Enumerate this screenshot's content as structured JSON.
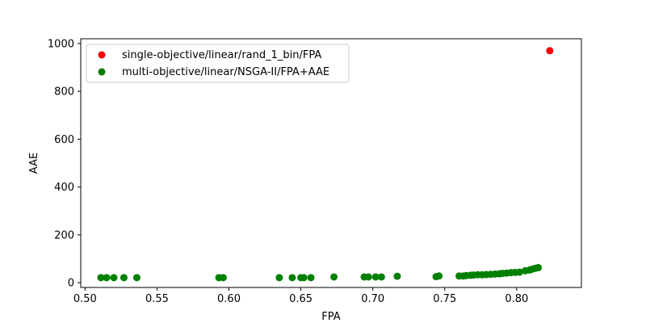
{
  "chart_data": {
    "type": "scatter",
    "xlabel": "FPA",
    "ylabel": "AAE",
    "xlim": [
      0.497,
      0.845
    ],
    "ylim": [
      -20,
      1020
    ],
    "x_ticks": [
      0.5,
      0.55,
      0.6,
      0.65,
      0.7,
      0.75,
      0.8
    ],
    "x_tick_labels": [
      "0.50",
      "0.55",
      "0.60",
      "0.65",
      "0.70",
      "0.75",
      "0.80"
    ],
    "y_ticks": [
      0,
      200,
      400,
      600,
      800,
      1000
    ],
    "y_tick_labels": [
      "0",
      "200",
      "400",
      "600",
      "800",
      "1000"
    ],
    "grid": false,
    "legend_position": "top-left",
    "series": [
      {
        "name": "single-objective/linear/rand_1_bin/FPA",
        "color": "#ff0000",
        "points": [
          {
            "x": 0.823,
            "y": 970
          }
        ]
      },
      {
        "name": "multi-objective/linear/NSGA-II/FPA+AAE",
        "color": "#008000",
        "points": [
          {
            "x": 0.511,
            "y": 21
          },
          {
            "x": 0.515,
            "y": 21
          },
          {
            "x": 0.52,
            "y": 21
          },
          {
            "x": 0.527,
            "y": 21
          },
          {
            "x": 0.536,
            "y": 21
          },
          {
            "x": 0.593,
            "y": 21
          },
          {
            "x": 0.596,
            "y": 21
          },
          {
            "x": 0.635,
            "y": 21
          },
          {
            "x": 0.644,
            "y": 21
          },
          {
            "x": 0.65,
            "y": 21
          },
          {
            "x": 0.652,
            "y": 21
          },
          {
            "x": 0.657,
            "y": 21
          },
          {
            "x": 0.673,
            "y": 24
          },
          {
            "x": 0.694,
            "y": 24
          },
          {
            "x": 0.697,
            "y": 24
          },
          {
            "x": 0.702,
            "y": 24
          },
          {
            "x": 0.706,
            "y": 24
          },
          {
            "x": 0.717,
            "y": 27
          },
          {
            "x": 0.744,
            "y": 25
          },
          {
            "x": 0.746,
            "y": 28
          },
          {
            "x": 0.76,
            "y": 28
          },
          {
            "x": 0.763,
            "y": 28
          },
          {
            "x": 0.765,
            "y": 30
          },
          {
            "x": 0.768,
            "y": 31
          },
          {
            "x": 0.77,
            "y": 32
          },
          {
            "x": 0.773,
            "y": 33
          },
          {
            "x": 0.776,
            "y": 33
          },
          {
            "x": 0.779,
            "y": 34
          },
          {
            "x": 0.782,
            "y": 35
          },
          {
            "x": 0.785,
            "y": 36
          },
          {
            "x": 0.788,
            "y": 37
          },
          {
            "x": 0.79,
            "y": 39
          },
          {
            "x": 0.793,
            "y": 40
          },
          {
            "x": 0.796,
            "y": 42
          },
          {
            "x": 0.799,
            "y": 43
          },
          {
            "x": 0.802,
            "y": 44
          },
          {
            "x": 0.806,
            "y": 50
          },
          {
            "x": 0.809,
            "y": 53
          },
          {
            "x": 0.811,
            "y": 57
          },
          {
            "x": 0.813,
            "y": 60
          },
          {
            "x": 0.815,
            "y": 63
          }
        ]
      }
    ]
  }
}
